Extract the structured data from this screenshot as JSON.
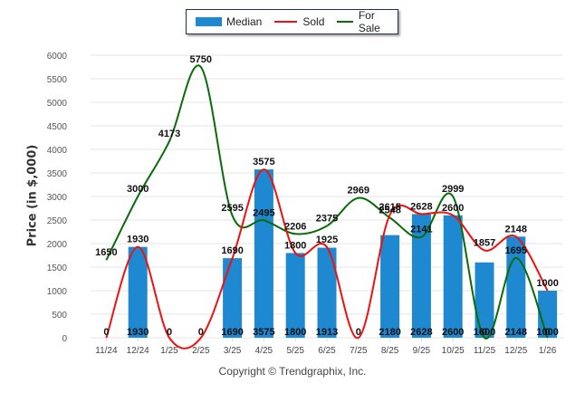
{
  "legend": {
    "median_label": "Median",
    "sold_label": "Sold",
    "for_sale_label": "For Sale"
  },
  "copyright": "Copyright © Trendgraphix, Inc.",
  "colors": {
    "median": "#1e88d0",
    "sold": "#ee1111",
    "for_sale": "#0a6b0a",
    "grid": "#e6e6e6"
  },
  "chart_data": {
    "type": "bar",
    "title": "",
    "xlabel": "",
    "ylabel": "Price (in $,000)",
    "ylim": [
      0,
      6000
    ],
    "yticks": [
      0,
      500,
      1000,
      1500,
      2000,
      2500,
      3000,
      3500,
      4000,
      4500,
      5000,
      5500,
      6000
    ],
    "grid": true,
    "legend_position": "top-center",
    "categories": [
      "11/24",
      "12/24",
      "1/25",
      "2/25",
      "3/25",
      "4/25",
      "5/25",
      "6/25",
      "7/25",
      "8/25",
      "9/25",
      "10/25",
      "11/25",
      "12/25",
      "1/26"
    ],
    "series": [
      {
        "name": "Median",
        "type": "bar",
        "values": [
          0,
          1930,
          0,
          0,
          1690,
          3575,
          1800,
          1913,
          0,
          2180,
          2628,
          2600,
          1600,
          2148,
          1000
        ]
      },
      {
        "name": "Sold",
        "type": "line",
        "values": [
          0,
          1930,
          0,
          0,
          1690,
          3575,
          1800,
          1925,
          0,
          2615,
          2628,
          2600,
          1857,
          2148,
          1000
        ]
      },
      {
        "name": "For Sale",
        "type": "line",
        "values": [
          1650,
          3000,
          4173,
          5750,
          2595,
          2495,
          2206,
          2375,
          2969,
          2548,
          2141,
          2999,
          0,
          1695,
          0
        ]
      }
    ]
  }
}
